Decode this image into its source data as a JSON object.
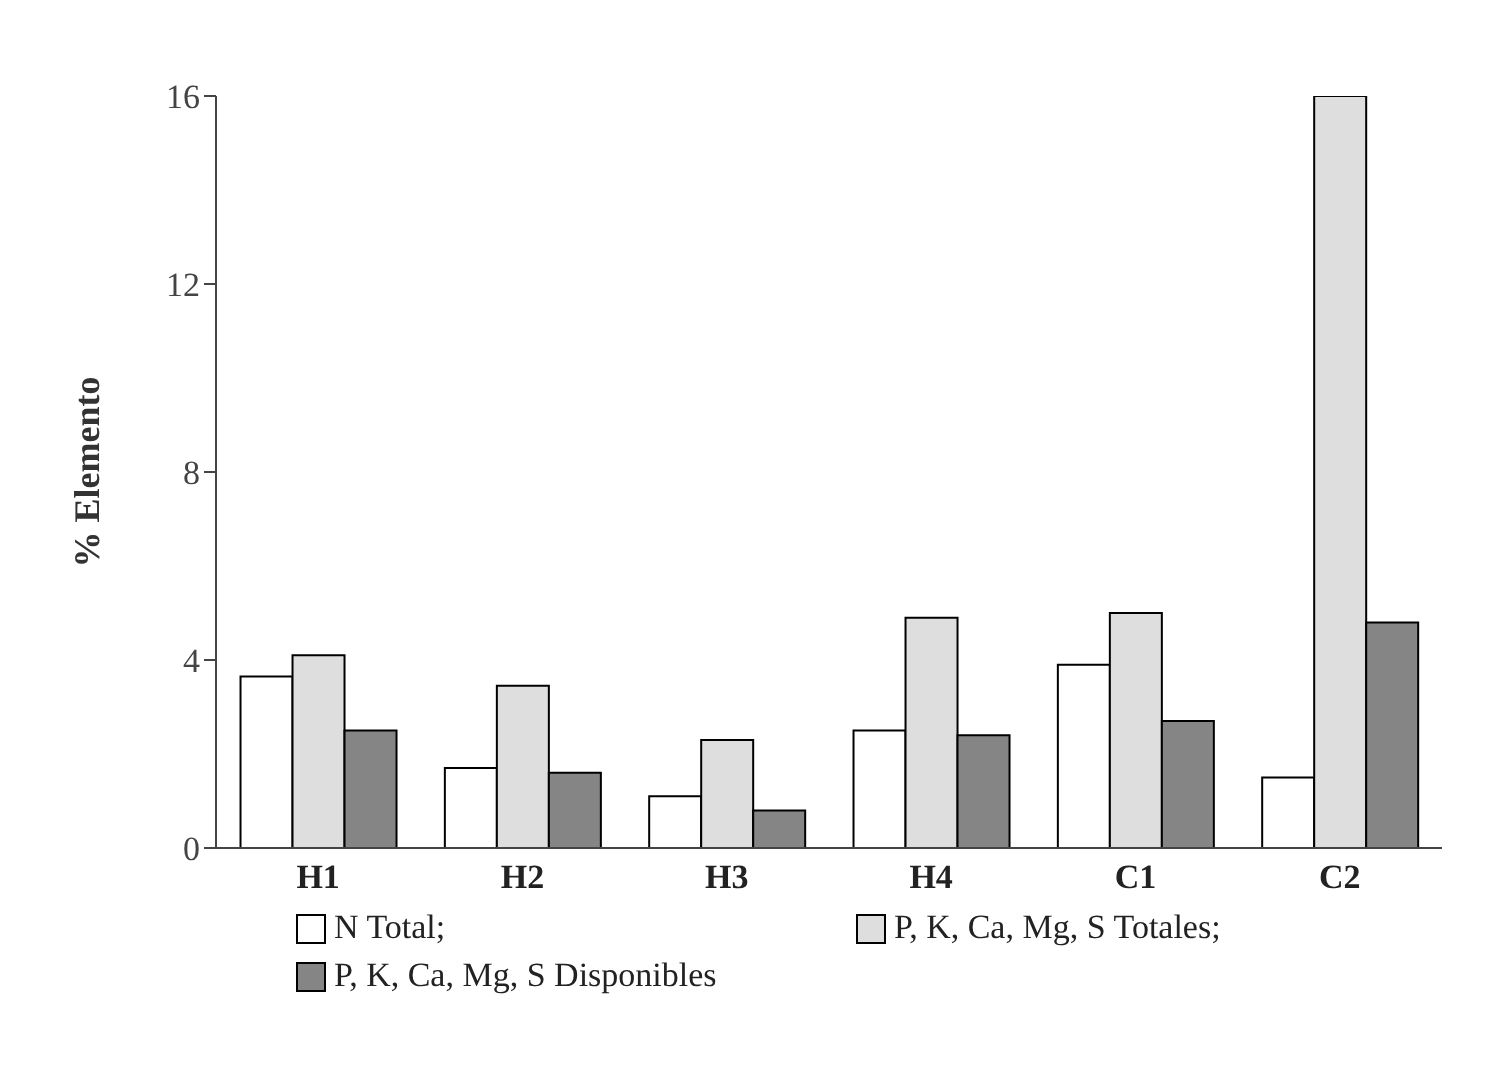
{
  "chart_data": {
    "type": "bar",
    "ylabel": "% Elemento",
    "categories": [
      "H1",
      "H2",
      "H3",
      "H4",
      "C1",
      "C2"
    ],
    "series": [
      {
        "name": "N Total;",
        "color": "#ffffff",
        "values": [
          3.65,
          1.7,
          1.1,
          2.5,
          3.9,
          1.5
        ]
      },
      {
        "name": "P, K, Ca, Mg, S Totales;",
        "color": "#dedede",
        "values": [
          4.1,
          3.45,
          2.3,
          4.9,
          5.0,
          16
        ]
      },
      {
        "name": "P, K, Ca, Mg, S Disponibles",
        "color": "#858585",
        "values": [
          2.5,
          1.6,
          0.8,
          2.4,
          2.7,
          4.8
        ]
      }
    ],
    "ylim": [
      0,
      16
    ],
    "yticks": [
      0,
      4,
      8,
      12,
      16
    ],
    "grid": false,
    "legend": "bottom"
  }
}
